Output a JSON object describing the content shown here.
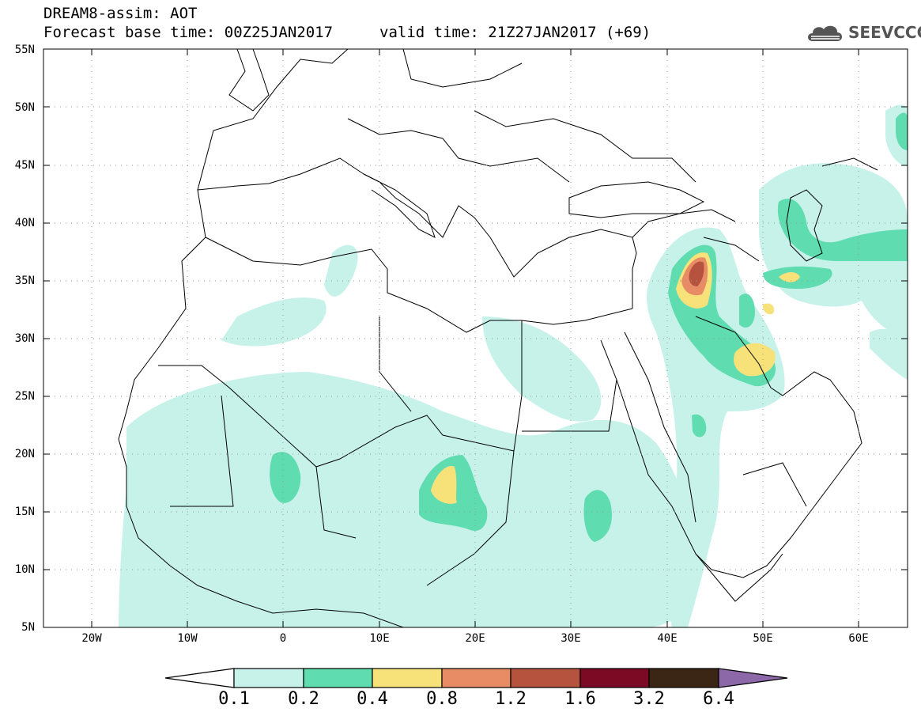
{
  "header": {
    "title": "DREAM8-assim: AOT",
    "base_time": "Forecast base time: 00Z25JAN2017",
    "valid_time": "valid time: 21Z27JAN2017 (+69)"
  },
  "logo": {
    "text": "SEEVCCC",
    "icon": "cloud-icon"
  },
  "axes": {
    "lat_labels": [
      "55N",
      "50N",
      "45N",
      "40N",
      "35N",
      "30N",
      "25N",
      "20N",
      "15N",
      "10N",
      "5N"
    ],
    "lon_labels": [
      "20W",
      "10W",
      "0",
      "10E",
      "20E",
      "30E",
      "40E",
      "50E",
      "60E"
    ]
  },
  "colorbar": {
    "labels": [
      "0.1",
      "0.2",
      "0.4",
      "0.8",
      "1.2",
      "1.6",
      "3.2",
      "6.4"
    ],
    "colors": [
      "#ffffff",
      "#c6f2ea",
      "#5fdcb0",
      "#f7e27a",
      "#e88c66",
      "#b5533f",
      "#7d0a25",
      "#3b2616",
      "#8c68a8"
    ]
  },
  "map_data": {
    "lon_range": [
      -25,
      65
    ],
    "lat_range": [
      5,
      55
    ],
    "field": "Aerosol optical thickness"
  }
}
